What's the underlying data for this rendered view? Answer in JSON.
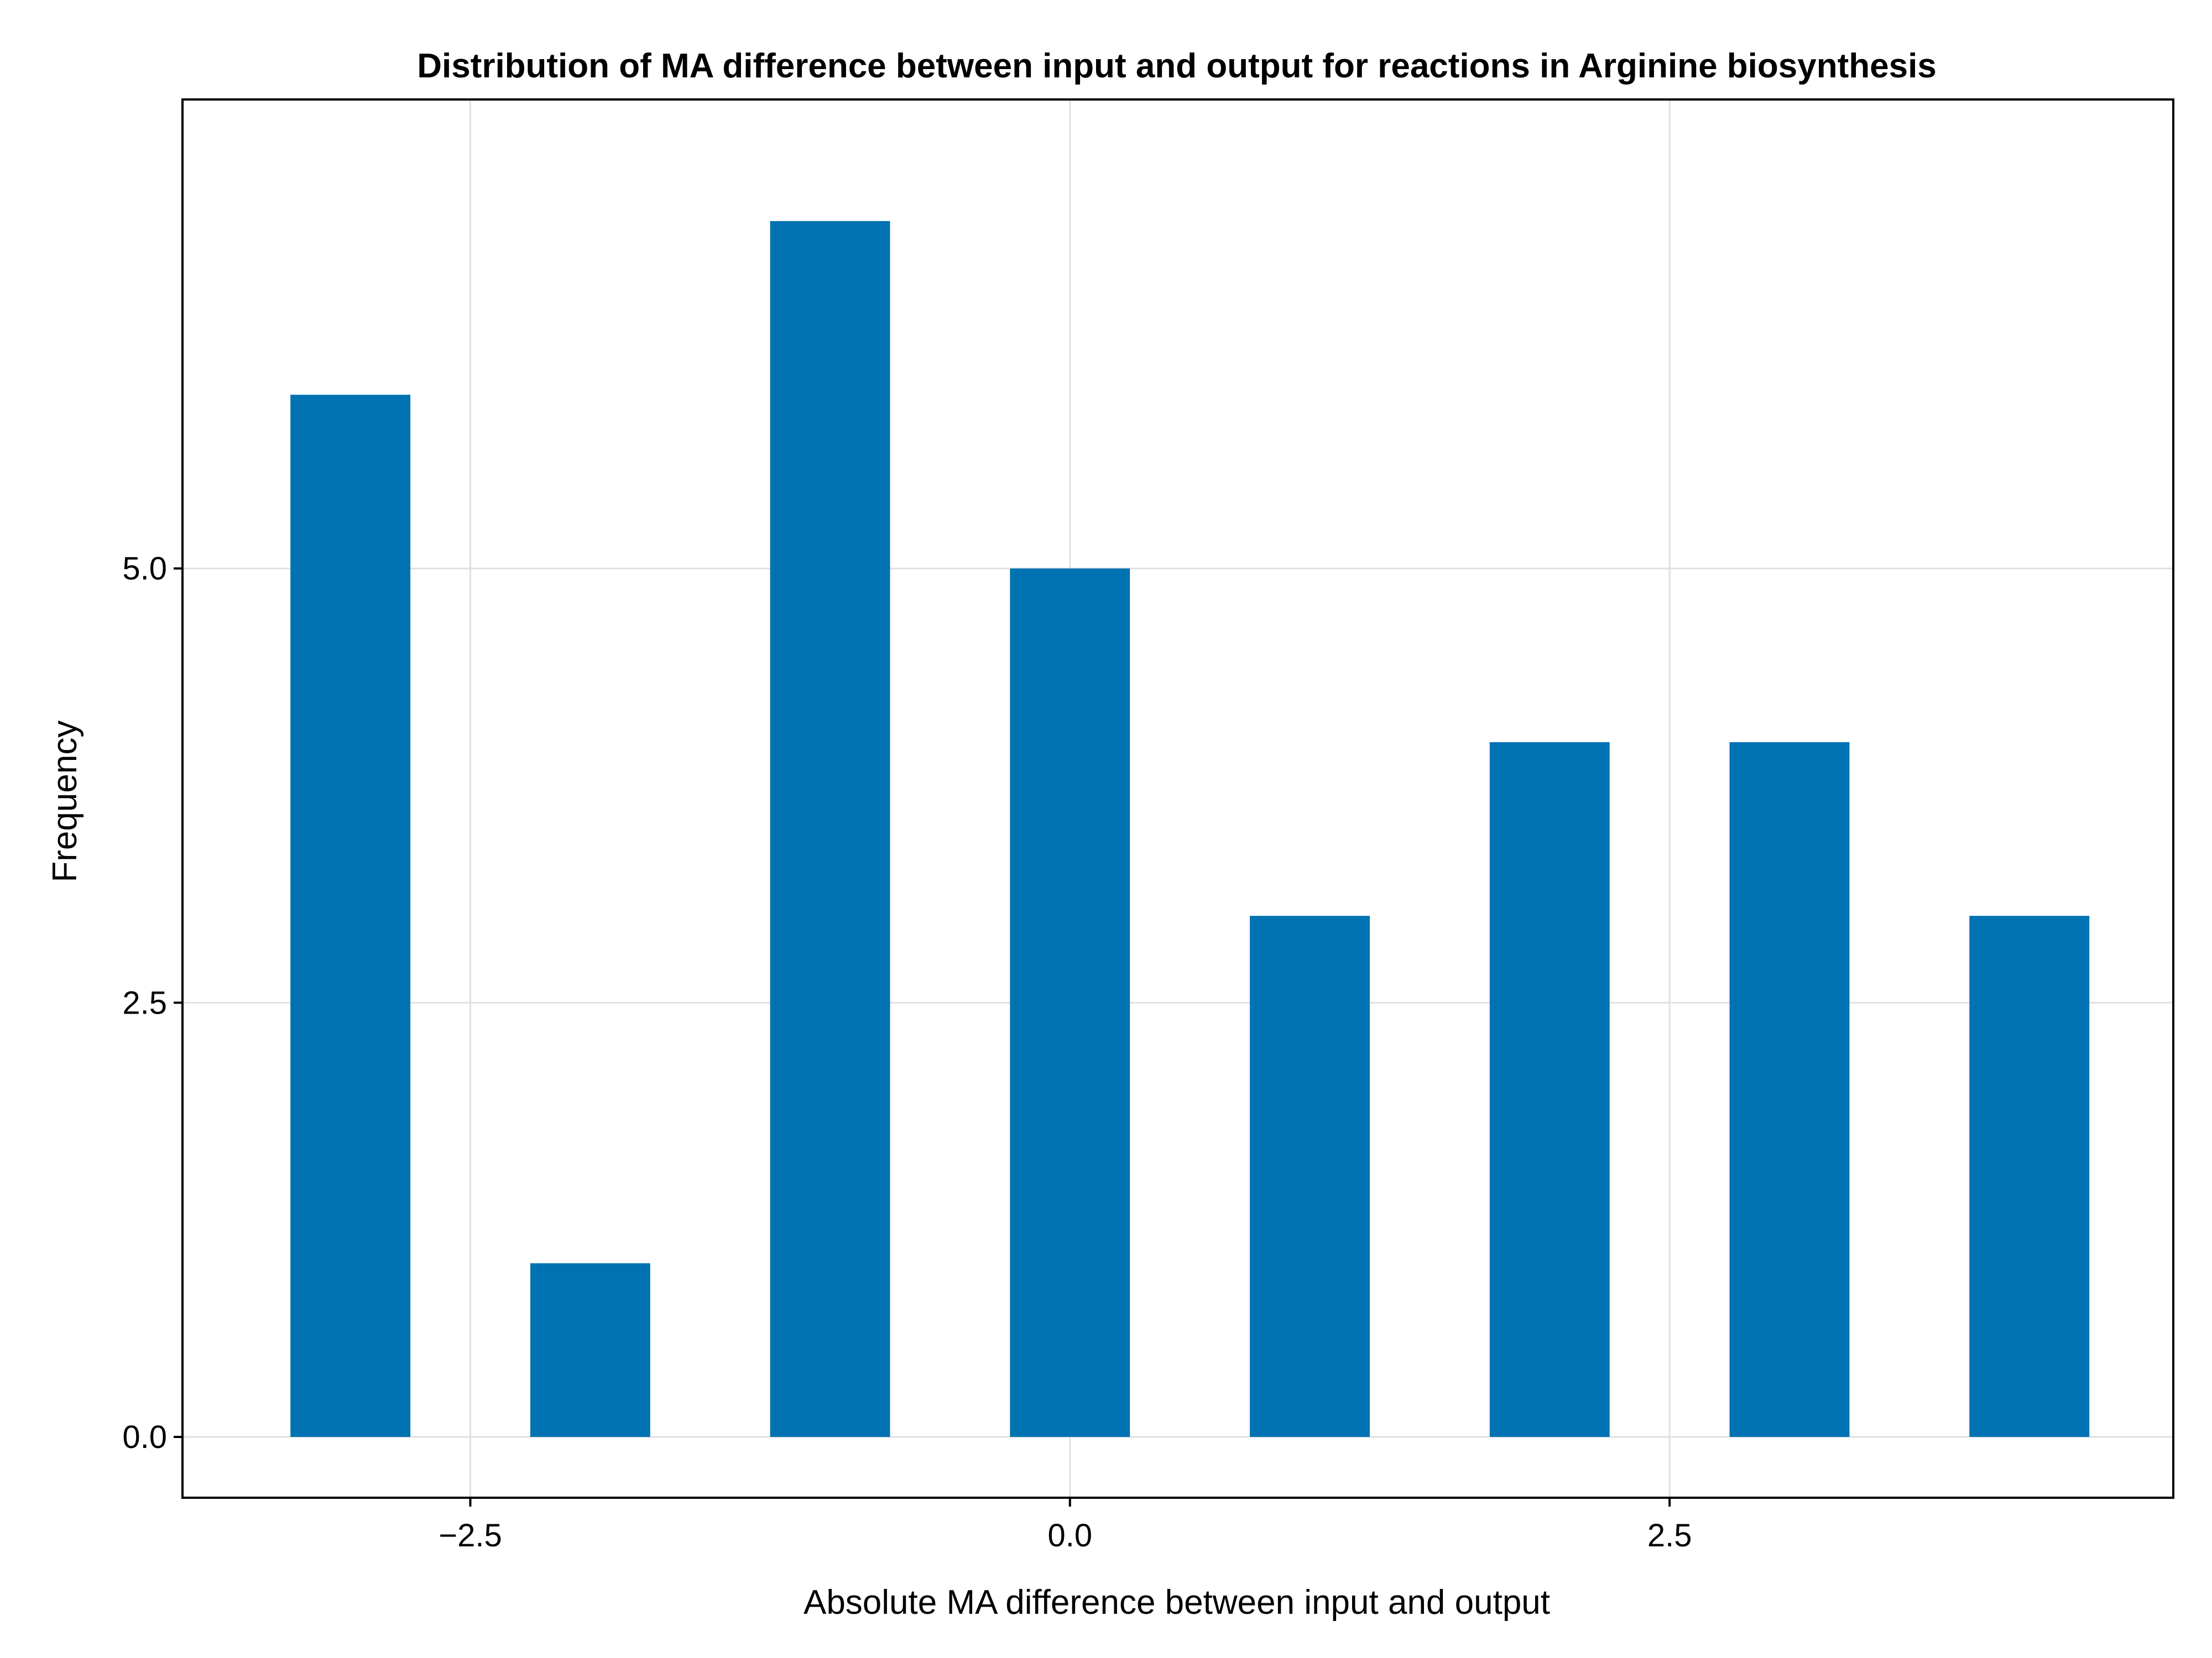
{
  "chart_data": {
    "type": "bar",
    "title": "Distribution of MA difference between input and output for reactions in Arginine biosynthesis",
    "xlabel": "Absolute MA difference between input and output",
    "ylabel": "Frequency",
    "x": [
      -3,
      -2,
      -1,
      0,
      1,
      2,
      3,
      4
    ],
    "values": [
      6,
      1,
      7,
      5,
      3,
      4,
      4,
      3
    ],
    "bar_width": 0.5,
    "xlim": [
      -3.7,
      4.6
    ],
    "ylim": [
      -0.35,
      7.7
    ],
    "xticks": [
      -2.5,
      0.0,
      2.5
    ],
    "xtick_labels": [
      "−2.5",
      "0.0",
      "2.5"
    ],
    "yticks": [
      0.0,
      2.5,
      5.0
    ],
    "ytick_labels": [
      "0.0",
      "2.5",
      "5.0"
    ],
    "grid": true,
    "colors": {
      "bar": "#0072b2",
      "grid": "#e0e0e0",
      "axes": "#000000"
    }
  }
}
